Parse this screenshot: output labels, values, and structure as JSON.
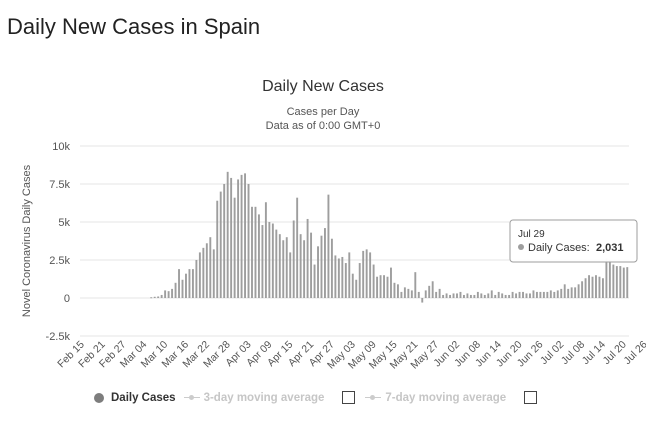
{
  "page": {
    "heading": "Daily New Cases in Spain"
  },
  "chart_data": {
    "type": "bar",
    "title": "Daily New Cases",
    "subtitle": [
      "Cases per Day",
      "Data as of 0:00 GMT+0"
    ],
    "ylabel": "Novel Coronavirus Daily Cases",
    "xlabel": "",
    "ylim": [
      -2500,
      10000
    ],
    "y_ticks": [
      {
        "value": 10000,
        "label": "10k"
      },
      {
        "value": 7500,
        "label": "7.5k"
      },
      {
        "value": 5000,
        "label": "5k"
      },
      {
        "value": 2500,
        "label": "2.5k"
      },
      {
        "value": 0,
        "label": "0"
      },
      {
        "value": -2500,
        "label": "-2.5k"
      }
    ],
    "x_tick_labels": [
      "Feb 15",
      "Feb 21",
      "Feb 27",
      "Mar 04",
      "Mar 10",
      "Mar 16",
      "Mar 22",
      "Mar 28",
      "Apr 03",
      "Apr 09",
      "Apr 15",
      "Apr 21",
      "Apr 27",
      "May 03",
      "May 09",
      "May 15",
      "May 21",
      "May 27",
      "Jun 02",
      "Jun 08",
      "Jun 14",
      "Jun 20",
      "Jun 26",
      "Jul 02",
      "Jul 08",
      "Jul 14",
      "Jul 20",
      "Jul 26"
    ],
    "grid": true,
    "color": "#9e9e9e",
    "series": [
      {
        "name": "Daily Cases",
        "start_date": "Feb 15",
        "values": [
          0,
          0,
          0,
          0,
          0,
          0,
          0,
          0,
          0,
          0,
          0,
          0,
          0,
          0,
          0,
          0,
          0,
          0,
          0,
          0,
          50,
          80,
          100,
          200,
          500,
          450,
          600,
          1000,
          1900,
          1200,
          1600,
          1900,
          1900,
          2500,
          3000,
          3300,
          3600,
          4000,
          3200,
          6400,
          7000,
          7500,
          8300,
          7900,
          6600,
          7800,
          8100,
          8200,
          7500,
          6000,
          6000,
          5500,
          4800,
          6300,
          5000,
          4900,
          4500,
          4200,
          3800,
          4000,
          3000,
          5100,
          6600,
          4200,
          3800,
          5200,
          4300,
          2200,
          3400,
          4100,
          4600,
          6800,
          3900,
          2800,
          2600,
          2700,
          2300,
          3000,
          1600,
          1200,
          2300,
          3100,
          3200,
          3000,
          2200,
          1400,
          1500,
          1500,
          1400,
          2000,
          1000,
          900,
          400,
          700,
          600,
          500,
          1700,
          400,
          -300,
          500,
          800,
          1100,
          400,
          600,
          200,
          300,
          200,
          300,
          300,
          400,
          200,
          300,
          200,
          200,
          400,
          300,
          200,
          300,
          500,
          200,
          400,
          300,
          200,
          200,
          400,
          300,
          400,
          400,
          300,
          300,
          500,
          400,
          400,
          400,
          400,
          500,
          400,
          500,
          600,
          900,
          600,
          700,
          700,
          900,
          1100,
          1300,
          1500,
          1400,
          1500,
          1400,
          1300,
          2600,
          2500,
          2200,
          2100,
          2100,
          2000,
          2031
        ]
      },
      {
        "name": "3-day moving average",
        "visible": false
      },
      {
        "name": "7-day moving average",
        "visible": false
      }
    ],
    "tooltip": {
      "date": "Jul 29",
      "series_label": "Daily Cases:",
      "value_text": "2,031"
    },
    "legend": {
      "position": "bottom-left"
    }
  }
}
